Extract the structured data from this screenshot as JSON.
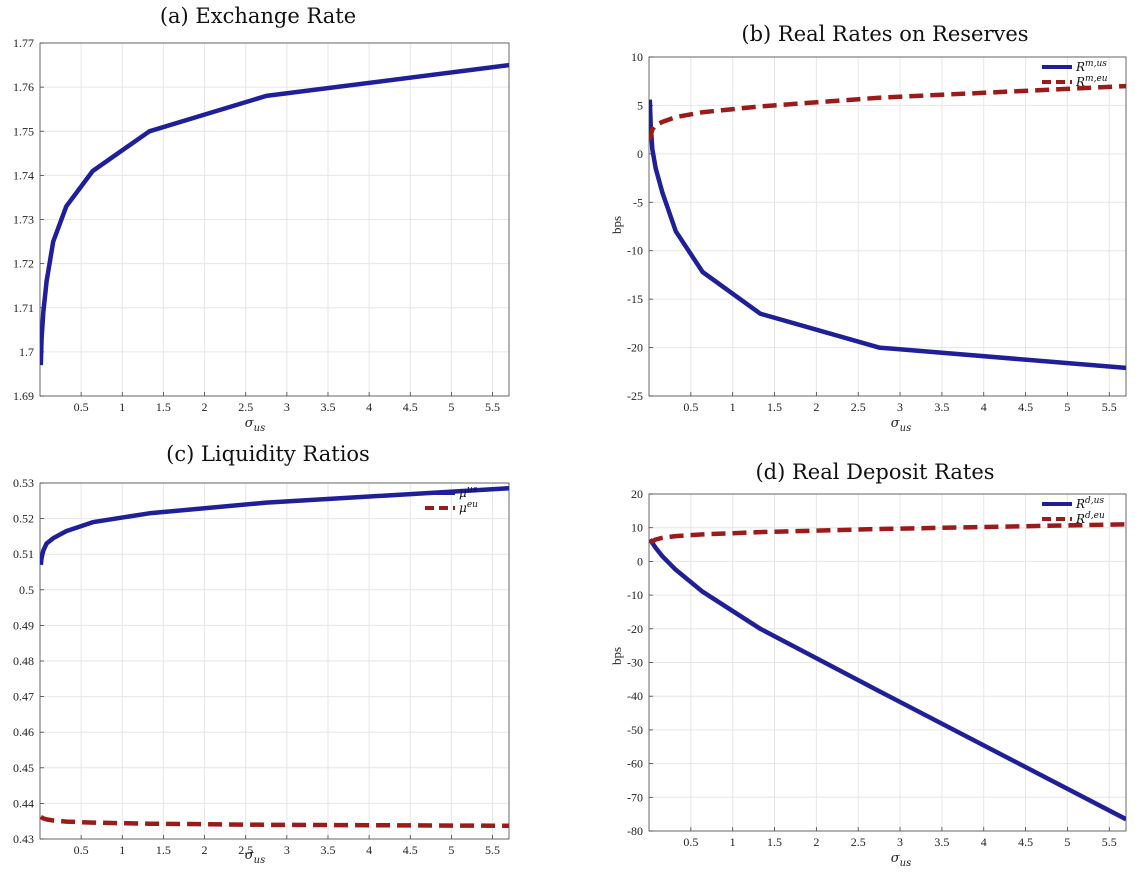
{
  "chart_data": [
    {
      "type": "line",
      "title": "(a) Exchange Rate",
      "xlabel": "σus",
      "ylabel": "",
      "xlim": [
        0,
        5.7
      ],
      "ylim": [
        1.69,
        1.77
      ],
      "xticks": [
        "0.5",
        "1",
        "1.5",
        "2",
        "2.5",
        "3",
        "3.5",
        "4",
        "4.5",
        "5",
        "5.5"
      ],
      "xtick_values": [
        0.5,
        1,
        1.5,
        2,
        2.5,
        3,
        3.5,
        4,
        4.5,
        5,
        5.5
      ],
      "yticks": [
        "1.69",
        "1.7",
        "1.71",
        "1.72",
        "1.73",
        "1.74",
        "1.75",
        "1.76",
        "1.77"
      ],
      "ytick_values": [
        1.69,
        1.7,
        1.71,
        1.72,
        1.73,
        1.74,
        1.75,
        1.76,
        1.77
      ],
      "grid": true,
      "series": [
        {
          "color": "#1f1f9a",
          "dash": "solid",
          "x": [
            0.01,
            0.02,
            0.04,
            0.08,
            0.16,
            0.32,
            0.64,
            1.33,
            2.75,
            5.7
          ],
          "y": [
            1.697,
            1.703,
            1.709,
            1.716,
            1.725,
            1.733,
            1.741,
            1.75,
            1.758,
            1.765
          ]
        }
      ]
    },
    {
      "type": "line",
      "title": "(b) Real Rates on Reserves",
      "xlabel": "σus",
      "ylabel": "bps",
      "xlim": [
        0,
        5.7
      ],
      "ylim": [
        -25,
        10
      ],
      "xticks": [
        "0.5",
        "1",
        "1.5",
        "2",
        "2.5",
        "3",
        "3.5",
        "4",
        "4.5",
        "5",
        "5.5"
      ],
      "xtick_values": [
        0.5,
        1,
        1.5,
        2,
        2.5,
        3,
        3.5,
        4,
        4.5,
        5,
        5.5
      ],
      "yticks": [
        "-25",
        "-20",
        "-15",
        "-10",
        "-5",
        "0",
        "5",
        "10"
      ],
      "ytick_values": [
        -25,
        -20,
        -15,
        -10,
        -5,
        0,
        5,
        10
      ],
      "grid": true,
      "legend": {
        "placement": "top-right",
        "entries": [
          "R^{m,us}",
          "R^{m,eu}"
        ]
      },
      "series": [
        {
          "name": "R^{m,us}",
          "color": "#1f1f9a",
          "dash": "solid",
          "x": [
            0.01,
            0.02,
            0.04,
            0.08,
            0.16,
            0.32,
            0.64,
            1.33,
            2.75,
            5.7
          ],
          "y": [
            5.6,
            3,
            0.5,
            -1.5,
            -4,
            -8,
            -12.2,
            -16.5,
            -20,
            -22.1
          ]
        },
        {
          "name": "R^{m,eu}",
          "color": "#9b1b1b",
          "dash": "dashed",
          "x": [
            0.01,
            0.02,
            0.04,
            0.08,
            0.16,
            0.32,
            0.64,
            1.33,
            2.75,
            5.7
          ],
          "y": [
            1.4,
            1.9,
            2.5,
            3.0,
            3.3,
            3.8,
            4.3,
            4.9,
            5.8,
            7.0
          ]
        }
      ]
    },
    {
      "type": "line",
      "title": "(c) Liquidity Ratios",
      "xlabel": "σus",
      "ylabel": "",
      "xlim": [
        0,
        5.7
      ],
      "ylim": [
        0.43,
        0.53
      ],
      "xticks": [
        "0.5",
        "1",
        "1.5",
        "2",
        "2.5",
        "3",
        "3.5",
        "4",
        "4.5",
        "5",
        "5.5"
      ],
      "xtick_values": [
        0.5,
        1,
        1.5,
        2,
        2.5,
        3,
        3.5,
        4,
        4.5,
        5,
        5.5
      ],
      "yticks": [
        "0.43",
        "0.44",
        "0.45",
        "0.46",
        "0.47",
        "0.48",
        "0.49",
        "0.5",
        "0.51",
        "0.52",
        "0.53"
      ],
      "ytick_values": [
        0.43,
        0.44,
        0.45,
        0.46,
        0.47,
        0.48,
        0.49,
        0.5,
        0.51,
        0.52,
        0.53
      ],
      "grid": true,
      "legend": {
        "placement": "top-right",
        "entries": [
          "μ^{us}",
          "μ^{eu}"
        ]
      },
      "series": [
        {
          "name": "μ^{us}",
          "color": "#1f1f9a",
          "dash": "solid",
          "x": [
            0.01,
            0.02,
            0.04,
            0.08,
            0.16,
            0.32,
            0.64,
            1.33,
            2.75,
            5.7
          ],
          "y": [
            0.507,
            0.509,
            0.511,
            0.513,
            0.5145,
            0.5165,
            0.519,
            0.5215,
            0.5245,
            0.5285
          ]
        },
        {
          "name": "μ^{eu}",
          "color": "#9b1b1b",
          "dash": "dashed",
          "x": [
            0.01,
            0.04,
            0.08,
            0.16,
            0.32,
            0.64,
            1.33,
            2.75,
            5.7
          ],
          "y": [
            0.4362,
            0.4358,
            0.4355,
            0.4352,
            0.4349,
            0.4346,
            0.4343,
            0.434,
            0.4337
          ]
        }
      ]
    },
    {
      "type": "line",
      "title": "(d) Real Deposit Rates",
      "xlabel": "σus",
      "ylabel": "bps",
      "xlim": [
        0,
        5.7
      ],
      "ylim": [
        -80,
        20
      ],
      "xticks": [
        "0.5",
        "1",
        "1.5",
        "2",
        "2.5",
        "3",
        "3.5",
        "4",
        "4.5",
        "5",
        "5.5"
      ],
      "xtick_values": [
        0.5,
        1,
        1.5,
        2,
        2.5,
        3,
        3.5,
        4,
        4.5,
        5,
        5.5
      ],
      "yticks": [
        "-80",
        "-70",
        "-60",
        "-50",
        "-40",
        "-30",
        "-20",
        "-10",
        "0",
        "10",
        "20"
      ],
      "ytick_values": [
        -80,
        -70,
        -60,
        -50,
        -40,
        -30,
        -20,
        -10,
        0,
        10,
        20
      ],
      "grid": true,
      "legend": {
        "placement": "top-right",
        "entries": [
          "R^{d,us}",
          "R^{d,eu}"
        ]
      },
      "series": [
        {
          "name": "R^{d,us}",
          "color": "#1f1f9a",
          "dash": "solid",
          "x": [
            0.01,
            0.04,
            0.08,
            0.16,
            0.32,
            0.64,
            1.33,
            2.75,
            5.7
          ],
          "y": [
            6.5,
            5.5,
            4,
            1.5,
            -2.5,
            -9,
            -20,
            -38.5,
            -76.5
          ]
        },
        {
          "name": "R^{d,eu}",
          "color": "#9b1b1b",
          "dash": "dashed",
          "x": [
            0.01,
            0.04,
            0.08,
            0.16,
            0.32,
            0.64,
            1.33,
            2.75,
            5.7
          ],
          "y": [
            5.5,
            6.0,
            6.5,
            7.0,
            7.5,
            8.0,
            8.7,
            9.6,
            11.0
          ]
        }
      ]
    }
  ]
}
